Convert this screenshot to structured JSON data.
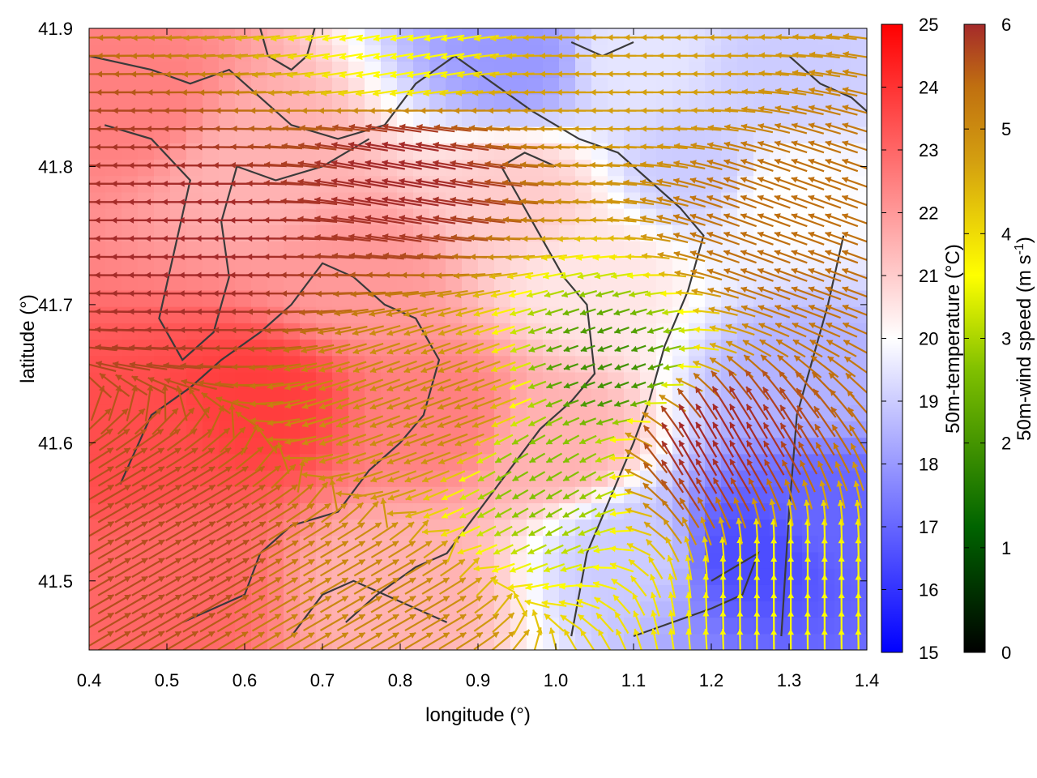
{
  "chart_data": {
    "type": "heatmap",
    "overlay": "wind-vector-field",
    "xlabel": "longitude (°)",
    "ylabel": "latitude (°)",
    "xlim": [
      0.4,
      1.4
    ],
    "ylim": [
      41.45,
      41.9
    ],
    "x_ticks": [
      "0.4",
      "0.5",
      "0.6",
      "0.7",
      "0.8",
      "0.9",
      "1.0",
      "1.1",
      "1.2",
      "1.3",
      "1.4"
    ],
    "y_ticks": [
      "41.5",
      "41.6",
      "41.7",
      "41.8",
      "41.9"
    ],
    "grid": false,
    "temperature_colorbar": {
      "label": "50m-temperature (°C)",
      "range": [
        15,
        25
      ],
      "ticks": [
        "15",
        "16",
        "17",
        "18",
        "19",
        "20",
        "21",
        "22",
        "23",
        "24",
        "25"
      ],
      "colors": [
        "#0000ff",
        "#ffffff",
        "#ff0000"
      ]
    },
    "wind_colorbar": {
      "label_main": "50m-wind speed (m s",
      "label_sup": "-1",
      "label_end": ")",
      "range": [
        0,
        6
      ],
      "ticks": [
        "0",
        "1",
        "2",
        "3",
        "4",
        "5",
        "6"
      ],
      "colors": [
        "#000000",
        "#006400",
        "#80c000",
        "#ffff00",
        "#d4a010",
        "#c07010",
        "#a52a2a"
      ]
    },
    "coastline_color": "#3a3a3a",
    "temperature_regions": [
      {
        "lon": 0.45,
        "lat": 41.85,
        "t": 22.5
      },
      {
        "lon": 0.62,
        "lat": 41.8,
        "t": 21.5
      },
      {
        "lon": 0.75,
        "lat": 41.72,
        "t": 22.0
      },
      {
        "lon": 0.62,
        "lat": 41.63,
        "t": 23.8
      },
      {
        "lon": 0.45,
        "lat": 41.6,
        "t": 23.5
      },
      {
        "lon": 0.5,
        "lat": 41.5,
        "t": 23.0
      },
      {
        "lon": 0.85,
        "lat": 41.62,
        "t": 22.5
      },
      {
        "lon": 0.95,
        "lat": 41.78,
        "t": 21.0
      },
      {
        "lon": 1.05,
        "lat": 41.72,
        "t": 20.5
      },
      {
        "lon": 1.18,
        "lat": 41.8,
        "t": 19.0
      },
      {
        "lon": 1.3,
        "lat": 41.78,
        "t": 20.0
      },
      {
        "lon": 1.32,
        "lat": 41.65,
        "t": 18.5
      },
      {
        "lon": 1.25,
        "lat": 41.52,
        "t": 16.5
      },
      {
        "lon": 1.35,
        "lat": 41.55,
        "t": 17.0
      },
      {
        "lon": 1.1,
        "lat": 41.52,
        "t": 19.0
      },
      {
        "lon": 0.95,
        "lat": 41.88,
        "t": 18.0
      },
      {
        "lon": 1.1,
        "lat": 41.88,
        "t": 19.5
      },
      {
        "lon": 1.3,
        "lat": 41.87,
        "t": 19.0
      },
      {
        "lon": 1.0,
        "lat": 41.6,
        "t": 21.5
      },
      {
        "lon": 0.8,
        "lat": 41.5,
        "t": 21.5
      }
    ],
    "wind_regions": [
      {
        "lon": 0.55,
        "lat": 41.75,
        "speed": 6.0,
        "dir_deg": 180
      },
      {
        "lon": 0.8,
        "lat": 41.8,
        "speed": 6.0,
        "dir_deg": 170
      },
      {
        "lon": 0.85,
        "lat": 41.62,
        "speed": 4.5,
        "dir_deg": 200
      },
      {
        "lon": 0.98,
        "lat": 41.58,
        "speed": 2.0,
        "dir_deg": 210
      },
      {
        "lon": 1.07,
        "lat": 41.65,
        "speed": 1.5,
        "dir_deg": 200
      },
      {
        "lon": 1.2,
        "lat": 41.6,
        "speed": 6.0,
        "dir_deg": 120
      },
      {
        "lon": 1.3,
        "lat": 41.5,
        "speed": 3.0,
        "dir_deg": 90
      },
      {
        "lon": 1.3,
        "lat": 41.75,
        "speed": 5.0,
        "dir_deg": 160
      },
      {
        "lon": 1.1,
        "lat": 41.88,
        "speed": 4.0,
        "dir_deg": 180
      },
      {
        "lon": 0.8,
        "lat": 41.88,
        "speed": 3.0,
        "dir_deg": 190
      },
      {
        "lon": 0.5,
        "lat": 41.52,
        "speed": 5.5,
        "dir_deg": 30
      },
      {
        "lon": 0.75,
        "lat": 41.48,
        "speed": 4.5,
        "dir_deg": 30
      }
    ],
    "coastlines": [
      [
        [
          0.4,
          41.88
        ],
        [
          0.48,
          41.87
        ],
        [
          0.53,
          41.86
        ],
        [
          0.58,
          41.87
        ],
        [
          0.62,
          41.85
        ],
        [
          0.66,
          41.83
        ],
        [
          0.72,
          41.82
        ],
        [
          0.78,
          41.83
        ],
        [
          0.82,
          41.86
        ],
        [
          0.87,
          41.88
        ],
        [
          0.92,
          41.86
        ],
        [
          0.97,
          41.84
        ],
        [
          1.03,
          41.82
        ],
        [
          1.08,
          41.81
        ],
        [
          1.12,
          41.79
        ],
        [
          1.16,
          41.77
        ],
        [
          1.19,
          41.75
        ],
        [
          1.17,
          41.71
        ],
        [
          1.14,
          41.67
        ],
        [
          1.12,
          41.63
        ],
        [
          1.1,
          41.6
        ],
        [
          1.07,
          41.56
        ],
        [
          1.04,
          41.52
        ],
        [
          1.02,
          41.46
        ]
      ],
      [
        [
          0.42,
          41.83
        ],
        [
          0.48,
          41.82
        ],
        [
          0.53,
          41.79
        ],
        [
          0.51,
          41.74
        ],
        [
          0.49,
          41.69
        ],
        [
          0.52,
          41.66
        ],
        [
          0.56,
          41.68
        ],
        [
          0.58,
          41.72
        ],
        [
          0.57,
          41.76
        ],
        [
          0.59,
          41.8
        ],
        [
          0.64,
          41.79
        ],
        [
          0.7,
          41.8
        ],
        [
          0.76,
          41.82
        ]
      ],
      [
        [
          0.44,
          41.57
        ],
        [
          0.48,
          41.62
        ],
        [
          0.53,
          41.64
        ],
        [
          0.57,
          41.66
        ],
        [
          0.62,
          41.68
        ],
        [
          0.66,
          41.7
        ],
        [
          0.7,
          41.73
        ],
        [
          0.74,
          41.72
        ],
        [
          0.78,
          41.7
        ],
        [
          0.82,
          41.69
        ],
        [
          0.85,
          41.66
        ],
        [
          0.83,
          41.62
        ],
        [
          0.8,
          41.6
        ],
        [
          0.76,
          41.58
        ],
        [
          0.72,
          41.55
        ],
        [
          0.66,
          41.54
        ],
        [
          0.62,
          41.52
        ],
        [
          0.6,
          41.49
        ],
        [
          0.56,
          41.48
        ],
        [
          0.52,
          41.47
        ]
      ],
      [
        [
          0.73,
          41.47
        ],
        [
          0.77,
          41.49
        ],
        [
          0.82,
          41.51
        ],
        [
          0.86,
          41.52
        ],
        [
          0.9,
          41.55
        ],
        [
          0.94,
          41.58
        ],
        [
          0.98,
          41.61
        ],
        [
          1.02,
          41.63
        ],
        [
          1.05,
          41.65
        ],
        [
          1.04,
          41.7
        ],
        [
          1.01,
          41.72
        ],
        [
          0.98,
          41.75
        ],
        [
          0.95,
          41.78
        ],
        [
          0.93,
          41.8
        ],
        [
          0.96,
          41.81
        ],
        [
          1.0,
          41.8
        ]
      ],
      [
        [
          0.66,
          41.46
        ],
        [
          0.7,
          41.49
        ],
        [
          0.74,
          41.5
        ],
        [
          0.78,
          41.49
        ],
        [
          0.82,
          41.48
        ],
        [
          0.86,
          41.47
        ]
      ],
      [
        [
          1.1,
          41.46
        ],
        [
          1.15,
          41.47
        ],
        [
          1.2,
          41.48
        ],
        [
          1.24,
          41.49
        ],
        [
          1.26,
          41.52
        ],
        [
          1.23,
          41.51
        ],
        [
          1.2,
          41.5
        ]
      ],
      [
        [
          1.29,
          41.46
        ],
        [
          1.3,
          41.55
        ],
        [
          1.31,
          41.62
        ],
        [
          1.33,
          41.66
        ],
        [
          1.35,
          41.7
        ],
        [
          1.37,
          41.75
        ]
      ],
      [
        [
          0.62,
          41.9
        ],
        [
          0.63,
          41.88
        ],
        [
          0.66,
          41.87
        ],
        [
          0.68,
          41.88
        ],
        [
          0.69,
          41.9
        ]
      ],
      [
        [
          1.02,
          41.89
        ],
        [
          1.06,
          41.88
        ],
        [
          1.1,
          41.89
        ]
      ],
      [
        [
          1.3,
          41.88
        ],
        [
          1.34,
          41.86
        ],
        [
          1.38,
          41.85
        ],
        [
          1.4,
          41.84
        ]
      ]
    ]
  }
}
